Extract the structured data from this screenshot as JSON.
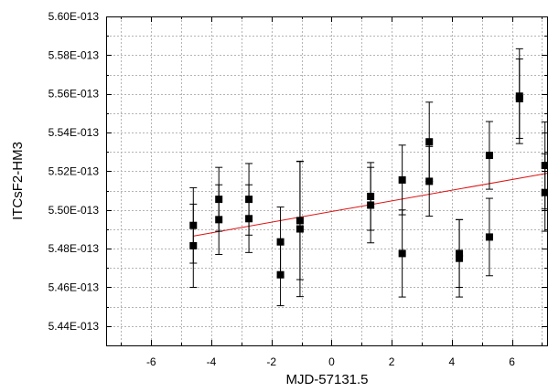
{
  "chart_data": {
    "type": "scatter",
    "xlabel": "MJD-57131.5",
    "ylabel": "ITCsF2-HM3",
    "xlim": [
      -7.5,
      7.2
    ],
    "ylim": [
      5.43e-13,
      5.6e-13
    ],
    "x_ticks": [
      -6,
      -4,
      -2,
      0,
      2,
      4,
      6
    ],
    "x_tick_labels": [
      "-6",
      "-4",
      "-2",
      "0",
      "2",
      "4",
      "6"
    ],
    "y_ticks": [
      5.44e-13,
      5.46e-13,
      5.48e-13,
      5.5e-13,
      5.52e-13,
      5.54e-13,
      5.56e-13,
      5.58e-13,
      5.6e-13
    ],
    "y_tick_labels": [
      "5.44E-013",
      "5.46E-013",
      "5.48E-013",
      "5.50E-013",
      "5.52E-013",
      "5.54E-013",
      "5.56E-013",
      "5.58E-013",
      "5.60E-013"
    ],
    "grid": true,
    "series": [
      {
        "marker": "square",
        "color": "#000000",
        "points": [
          {
            "x": -4.6,
            "y": 5.492e-13,
            "yerr": 1.95e-15
          },
          {
            "x": -4.6,
            "y": 5.4815e-13,
            "yerr": 2.15e-15
          },
          {
            "x": -3.75,
            "y": 5.5055e-13,
            "yerr": 1.65e-15
          },
          {
            "x": -3.75,
            "y": 5.495e-13,
            "yerr": 1.8e-15
          },
          {
            "x": -2.75,
            "y": 5.5055e-13,
            "yerr": 1.85e-15
          },
          {
            "x": -2.75,
            "y": 5.4955e-13,
            "yerr": 1.75e-15
          },
          {
            "x": -1.7,
            "y": 5.4835e-13,
            "yerr": 1.8e-15
          },
          {
            "x": -1.7,
            "y": 5.4665e-13,
            "yerr": 1.6e-15
          },
          {
            "x": -1.05,
            "y": 5.4945e-13,
            "yerr": 3.05e-15
          },
          {
            "x": -1.05,
            "y": 5.4902e-13,
            "yerr": 3.5e-15
          },
          {
            "x": 1.3,
            "y": 5.507e-13,
            "yerr": 1.75e-15
          },
          {
            "x": 1.3,
            "y": 5.5025e-13,
            "yerr": 1.95e-15
          },
          {
            "x": 2.35,
            "y": 5.5155e-13,
            "yerr": 1.8e-15
          },
          {
            "x": 2.35,
            "y": 5.4775e-13,
            "yerr": 2.25e-15
          },
          {
            "x": 3.25,
            "y": 5.5352e-13,
            "yerr": 2.05e-15
          },
          {
            "x": 3.25,
            "y": 5.5148e-13,
            "yerr": 1.8e-15
          },
          {
            "x": 4.25,
            "y": 5.4775e-13,
            "yerr": 1.75e-15
          },
          {
            "x": 4.25,
            "y": 5.475e-13,
            "yerr": 2e-15
          },
          {
            "x": 5.25,
            "y": 5.5282e-13,
            "yerr": 1.75e-15
          },
          {
            "x": 5.25,
            "y": 5.486e-13,
            "yerr": 2e-15
          },
          {
            "x": 6.25,
            "y": 5.5588e-13,
            "yerr": 2.45e-15
          },
          {
            "x": 6.25,
            "y": 5.5575e-13,
            "yerr": 2.05e-15
          },
          {
            "x": 7.1,
            "y": 5.523e-13,
            "yerr": 2.25e-15
          },
          {
            "x": 7.1,
            "y": 5.509e-13,
            "yerr": 2e-15
          }
        ]
      }
    ],
    "fit_line": {
      "color": "#dd1111",
      "x": [
        -4.6,
        7.2
      ],
      "y": [
        5.4865e-13,
        5.519e-13
      ]
    }
  }
}
